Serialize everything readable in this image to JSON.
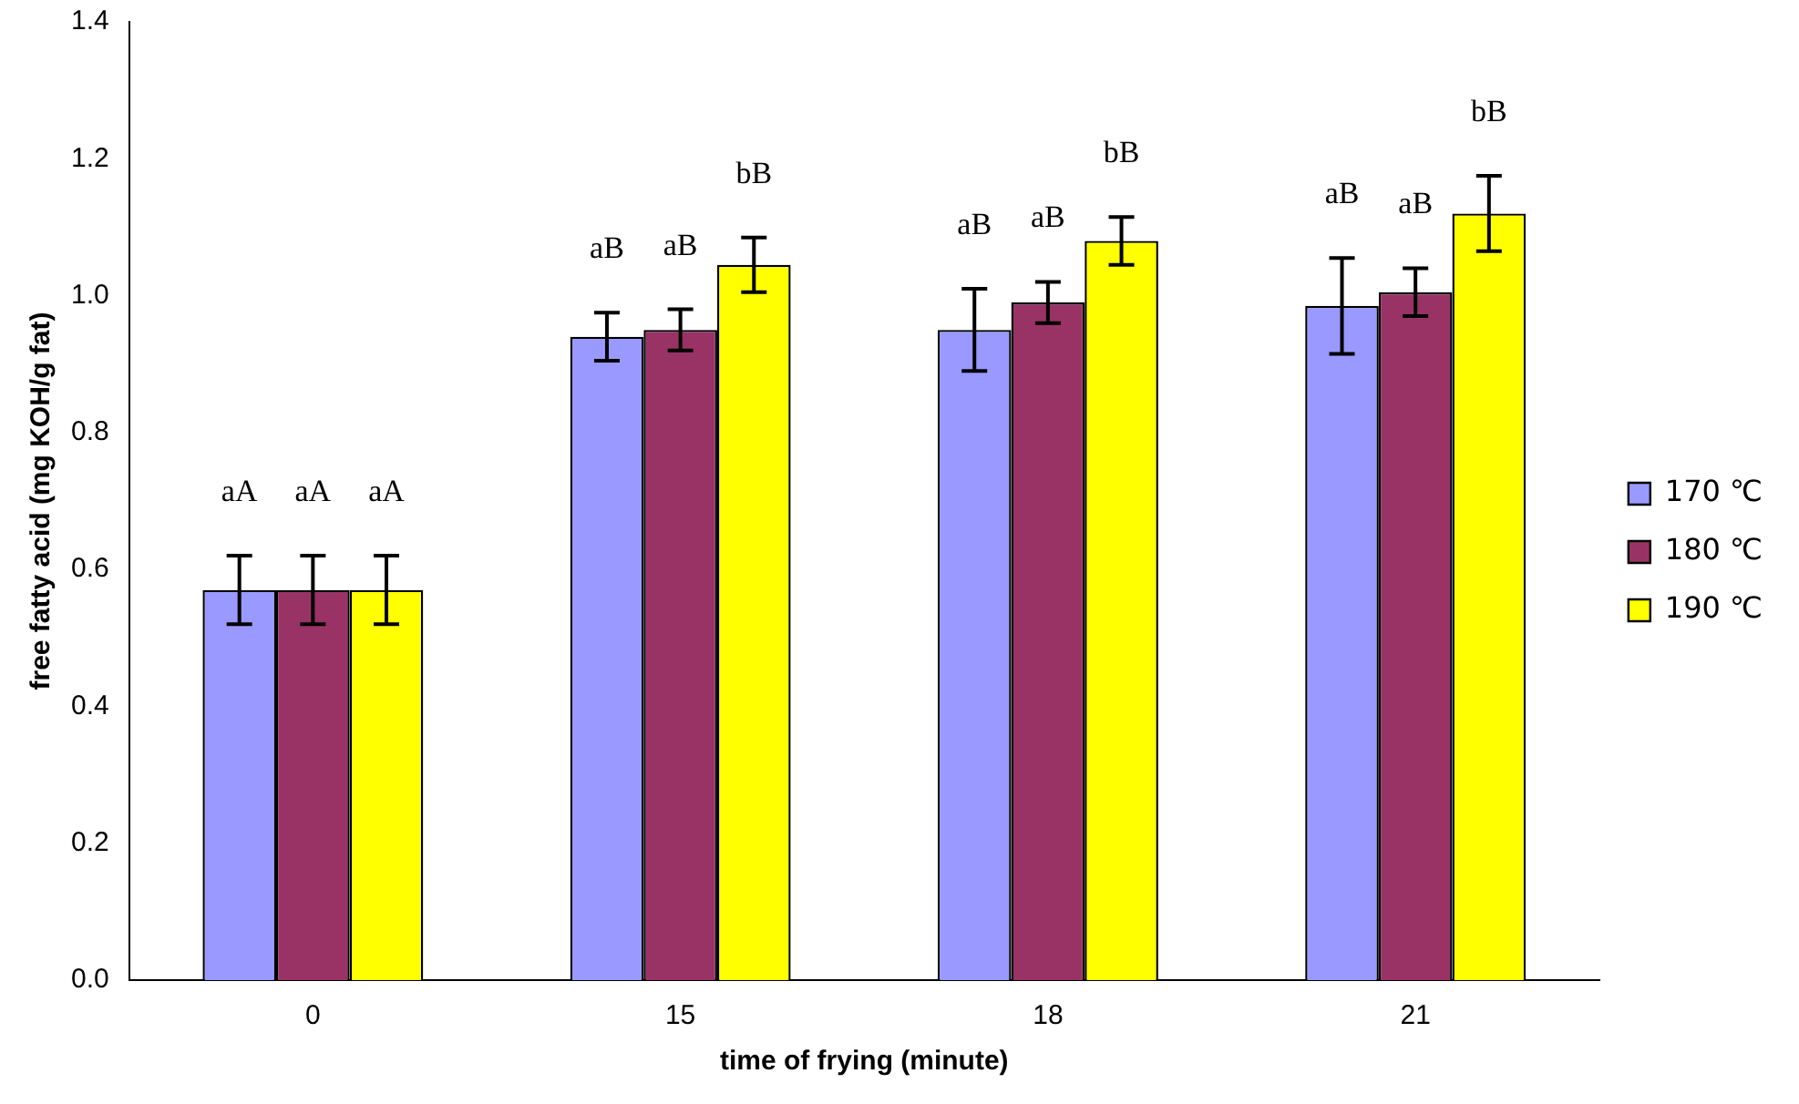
{
  "chart_data": {
    "type": "bar",
    "xlabel": "time of frying (minute)",
    "ylabel": "free fatty acid (mg KOH/g fat)",
    "categories": [
      "0",
      "15",
      "18",
      "21"
    ],
    "series": [
      {
        "name": "170 ℃",
        "color": "#9999ff",
        "values": [
          0.57,
          0.94,
          0.95,
          0.985
        ],
        "errors": [
          0.05,
          0.035,
          0.06,
          0.07
        ],
        "value_labels": [
          "aA",
          "aB",
          "aB",
          "aB"
        ]
      },
      {
        "name": "180 ℃",
        "color": "#993366",
        "values": [
          0.57,
          0.95,
          0.99,
          1.005
        ],
        "errors": [
          0.05,
          0.03,
          0.03,
          0.035
        ],
        "value_labels": [
          "aA",
          "aB",
          "aB",
          "aB"
        ]
      },
      {
        "name": "190 ℃",
        "color": "#ffff00",
        "values": [
          0.57,
          1.045,
          1.08,
          1.12
        ],
        "errors": [
          0.05,
          0.04,
          0.035,
          0.055
        ],
        "value_labels": [
          "aA",
          "bB",
          "bB",
          "bB"
        ]
      }
    ],
    "ylim": [
      0,
      1.4
    ],
    "yticks": [
      {
        "value": 0,
        "label": "0.0"
      },
      {
        "value": 0.2,
        "label": "0.2"
      },
      {
        "value": 0.4,
        "label": "0.4"
      },
      {
        "value": 0.6,
        "label": "0.6"
      },
      {
        "value": 0.8,
        "label": "0.8"
      },
      {
        "value": 1,
        "label": "1.0"
      },
      {
        "value": 1.2,
        "label": "1.2"
      },
      {
        "value": 1.4,
        "label": "1.4"
      }
    ],
    "grid": false,
    "legend": "right"
  }
}
